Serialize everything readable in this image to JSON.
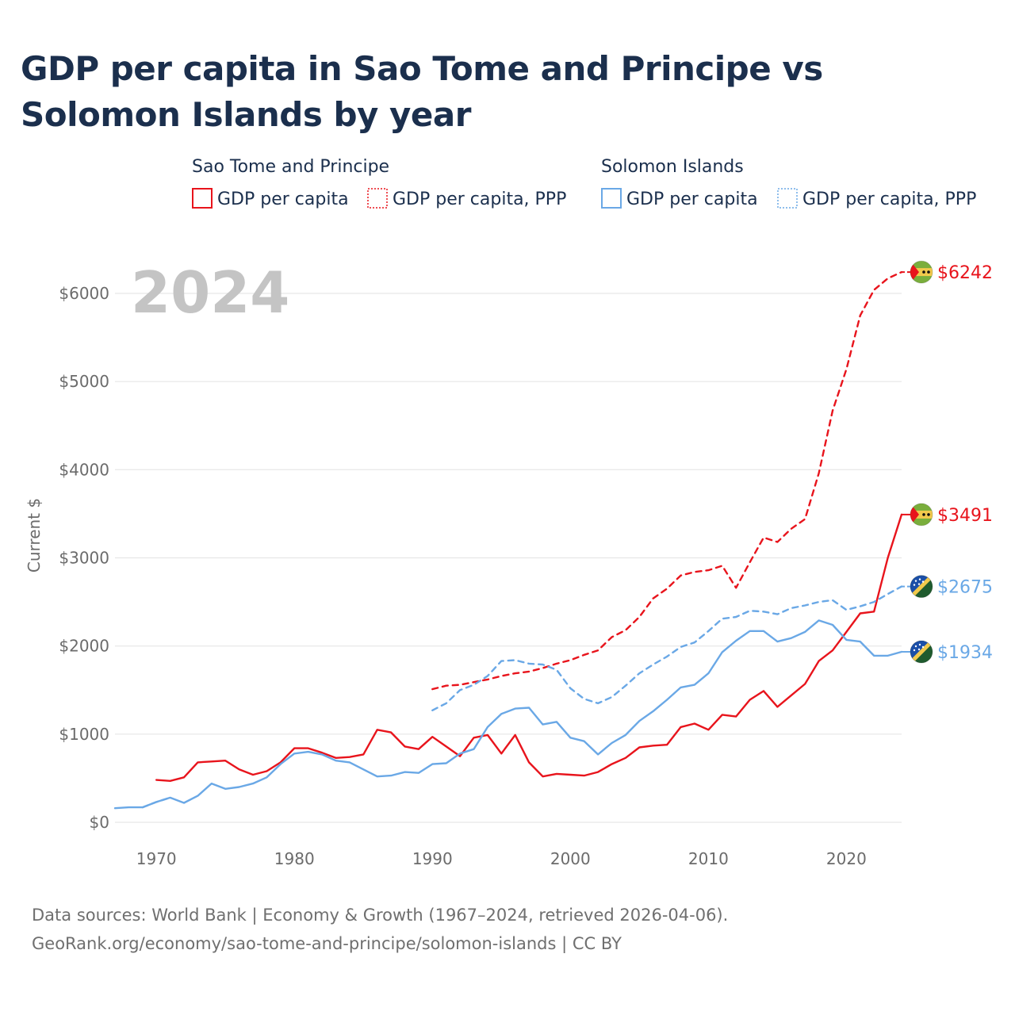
{
  "chart_data": {
    "type": "line",
    "title": "GDP per capita in Sao Tome and Principe vs Solomon Islands by year",
    "ylabel": "Current $",
    "xlabel": "",
    "year_label": "2024",
    "xlim": [
      1967,
      2024
    ],
    "ylim": [
      0,
      6500
    ],
    "x_ticks": [
      1970,
      1980,
      1990,
      2000,
      2010,
      2020
    ],
    "y_ticks": [
      0,
      1000,
      2000,
      3000,
      4000,
      5000,
      6000
    ],
    "y_tick_labels": [
      "$0",
      "$1000",
      "$2000",
      "$3000",
      "$4000",
      "$5000",
      "$6000"
    ],
    "legend": {
      "groups": [
        {
          "title": "Sao Tome and Principe",
          "items": [
            {
              "label": "GDP per capita",
              "style": "solid",
              "color": "#e8141c"
            },
            {
              "label": "GDP per capita, PPP",
              "style": "dotted",
              "color": "#e8141c"
            }
          ]
        },
        {
          "title": "Solomon Islands",
          "items": [
            {
              "label": "GDP per capita",
              "style": "solid",
              "color": "#6aa8e6"
            },
            {
              "label": "GDP per capita, PPP",
              "style": "dotted",
              "color": "#6aa8e6"
            }
          ]
        }
      ]
    },
    "series": [
      {
        "name": "Sao Tome and Principe — GDP per capita",
        "color": "#e8141c",
        "dash": "solid",
        "end_label": "$3491",
        "x": [
          1970,
          1971,
          1972,
          1973,
          1974,
          1975,
          1976,
          1977,
          1978,
          1979,
          1980,
          1981,
          1982,
          1983,
          1984,
          1985,
          1986,
          1987,
          1988,
          1989,
          1990,
          1991,
          1992,
          1993,
          1994,
          1995,
          1996,
          1997,
          1998,
          1999,
          2000,
          2001,
          2002,
          2003,
          2004,
          2005,
          2006,
          2007,
          2008,
          2009,
          2010,
          2011,
          2012,
          2013,
          2014,
          2015,
          2016,
          2017,
          2018,
          2019,
          2020,
          2021,
          2022,
          2023,
          2024
        ],
        "values": [
          480,
          470,
          510,
          680,
          690,
          700,
          600,
          540,
          580,
          680,
          840,
          840,
          790,
          730,
          740,
          770,
          1050,
          1020,
          860,
          830,
          970,
          860,
          750,
          960,
          990,
          780,
          990,
          680,
          520,
          550,
          540,
          530,
          570,
          660,
          730,
          850,
          870,
          880,
          1080,
          1120,
          1050,
          1220,
          1200,
          1390,
          1490,
          1310,
          1440,
          1570,
          1830,
          1950,
          2160,
          2370,
          2390,
          3000,
          3491
        ]
      },
      {
        "name": "Sao Tome and Principe — GDP per capita, PPP",
        "color": "#e8141c",
        "dash": "dashed",
        "end_label": "$6242",
        "x": [
          1990,
          1991,
          1992,
          1993,
          1994,
          1995,
          1996,
          1997,
          1998,
          1999,
          2000,
          2001,
          2002,
          2003,
          2004,
          2005,
          2006,
          2007,
          2008,
          2009,
          2010,
          2011,
          2012,
          2013,
          2014,
          2015,
          2016,
          2017,
          2018,
          2019,
          2020,
          2021,
          2022,
          2023,
          2024
        ],
        "values": [
          1510,
          1550,
          1560,
          1590,
          1620,
          1660,
          1690,
          1710,
          1750,
          1800,
          1840,
          1900,
          1950,
          2100,
          2180,
          2330,
          2540,
          2650,
          2800,
          2840,
          2860,
          2910,
          2660,
          2950,
          3230,
          3180,
          3330,
          3440,
          3960,
          4670,
          5140,
          5750,
          6040,
          6170,
          6242
        ]
      },
      {
        "name": "Solomon Islands — GDP per capita",
        "color": "#6aa8e6",
        "dash": "solid",
        "end_label": "$1934",
        "x": [
          1967,
          1968,
          1969,
          1970,
          1971,
          1972,
          1973,
          1974,
          1975,
          1976,
          1977,
          1978,
          1979,
          1980,
          1981,
          1982,
          1983,
          1984,
          1985,
          1986,
          1987,
          1988,
          1989,
          1990,
          1991,
          1992,
          1993,
          1994,
          1995,
          1996,
          1997,
          1998,
          1999,
          2000,
          2001,
          2002,
          2003,
          2004,
          2005,
          2006,
          2007,
          2008,
          2009,
          2010,
          2011,
          2012,
          2013,
          2014,
          2015,
          2016,
          2017,
          2018,
          2019,
          2020,
          2021,
          2022,
          2023,
          2024
        ],
        "values": [
          160,
          170,
          170,
          230,
          280,
          220,
          300,
          440,
          380,
          400,
          440,
          510,
          660,
          780,
          800,
          770,
          700,
          680,
          600,
          520,
          530,
          570,
          560,
          660,
          670,
          780,
          830,
          1080,
          1230,
          1290,
          1300,
          1110,
          1140,
          960,
          920,
          770,
          900,
          990,
          1150,
          1260,
          1390,
          1530,
          1560,
          1690,
          1930,
          2060,
          2170,
          2170,
          2050,
          2090,
          2160,
          2290,
          2240,
          2070,
          2050,
          1890,
          1890,
          1934
        ]
      },
      {
        "name": "Solomon Islands — GDP per capita, PPP",
        "color": "#6aa8e6",
        "dash": "dashed",
        "end_label": "$2675",
        "x": [
          1990,
          1991,
          1992,
          1993,
          1994,
          1995,
          1996,
          1997,
          1998,
          1999,
          2000,
          2001,
          2002,
          2003,
          2004,
          2005,
          2006,
          2007,
          2008,
          2009,
          2010,
          2011,
          2012,
          2013,
          2014,
          2015,
          2016,
          2017,
          2018,
          2019,
          2020,
          2021,
          2022,
          2023,
          2024
        ],
        "values": [
          1270,
          1350,
          1500,
          1560,
          1660,
          1830,
          1840,
          1800,
          1790,
          1730,
          1520,
          1400,
          1350,
          1420,
          1550,
          1690,
          1790,
          1880,
          1990,
          2040,
          2170,
          2310,
          2330,
          2400,
          2390,
          2360,
          2430,
          2460,
          2500,
          2520,
          2410,
          2450,
          2500,
          2590,
          2675
        ]
      },
      {
        "name": "Solomon Islands — GDP per capita (early dashed gap)",
        "color": "#6aa8e6",
        "dash": "dashed",
        "x": [
          1969,
          1970,
          1971
        ],
        "values": [
          170,
          230,
          280
        ],
        "end_label": ""
      }
    ]
  },
  "footer": {
    "line1": "Data sources: World Bank | Economy & Growth (1967–2024, retrieved 2026-04-06).",
    "line2": "GeoRank.org/economy/sao-tome-and-principe/solomon-islands | CC BY"
  },
  "flags": [
    {
      "name": "sao-tome-flag-icon"
    },
    {
      "name": "solomon-islands-flag-icon"
    }
  ]
}
